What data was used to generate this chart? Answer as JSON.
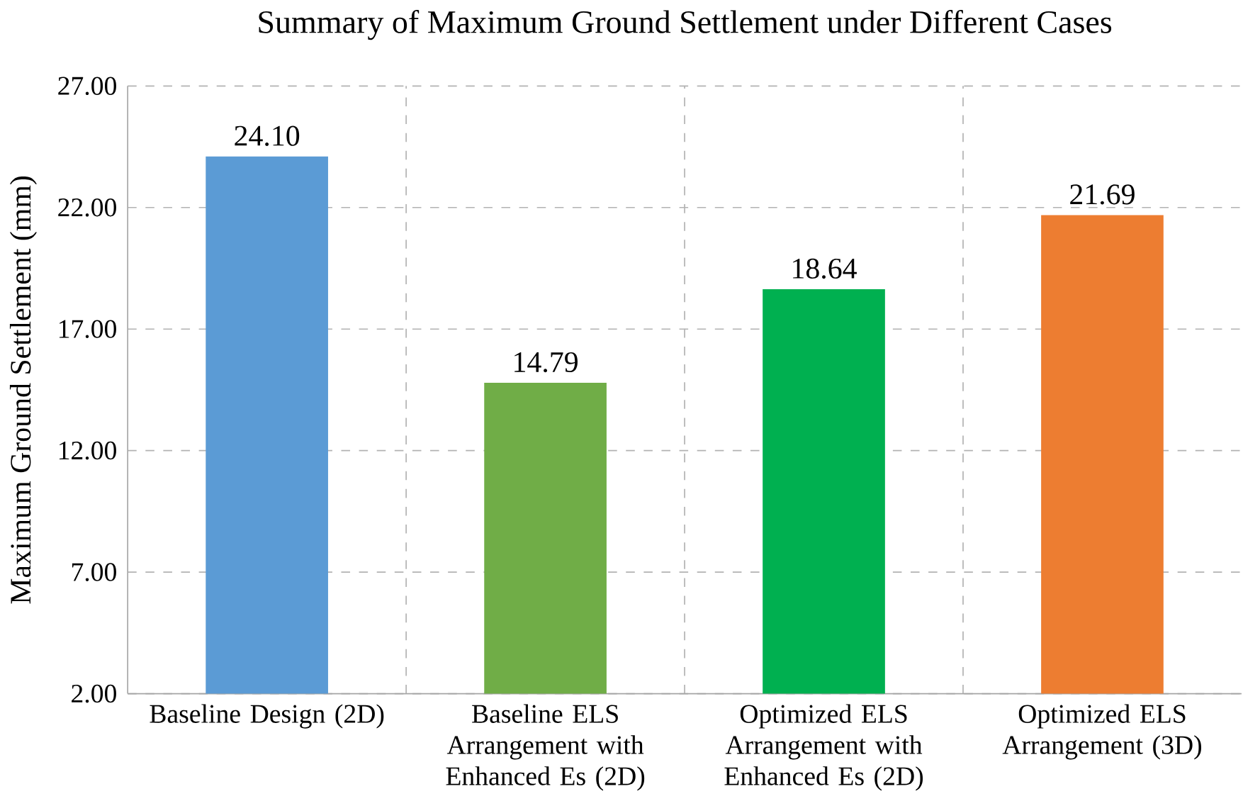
{
  "chart_data": {
    "type": "bar",
    "title": "Summary of Maximum Ground Settlement under Different Cases",
    "ylabel": "Maximum Ground Settlement (mm)",
    "categories": [
      "Baseline Design (2D)",
      "Baseline ELS Arrangement with Enhanced Es (2D)",
      "Optimized ELS Arrangement with Enhanced Es (2D)",
      "Optimized ELS Arrangement (3D)"
    ],
    "values": [
      24.1,
      14.79,
      18.64,
      21.69
    ],
    "value_labels": [
      "24.10",
      "14.79",
      "18.64",
      "21.69"
    ],
    "colors": [
      "#5b9bd5",
      "#70ad47",
      "#00b050",
      "#ed7d31"
    ],
    "ylim": [
      2,
      27
    ],
    "yticks": [
      {
        "value": 2,
        "label": "2.00"
      },
      {
        "value": 7,
        "label": "7.00"
      },
      {
        "value": 12,
        "label": "12.00"
      },
      {
        "value": 17,
        "label": "17.00"
      },
      {
        "value": 22,
        "label": "22.00"
      },
      {
        "value": 27,
        "label": "27.00"
      }
    ],
    "grid": true
  }
}
